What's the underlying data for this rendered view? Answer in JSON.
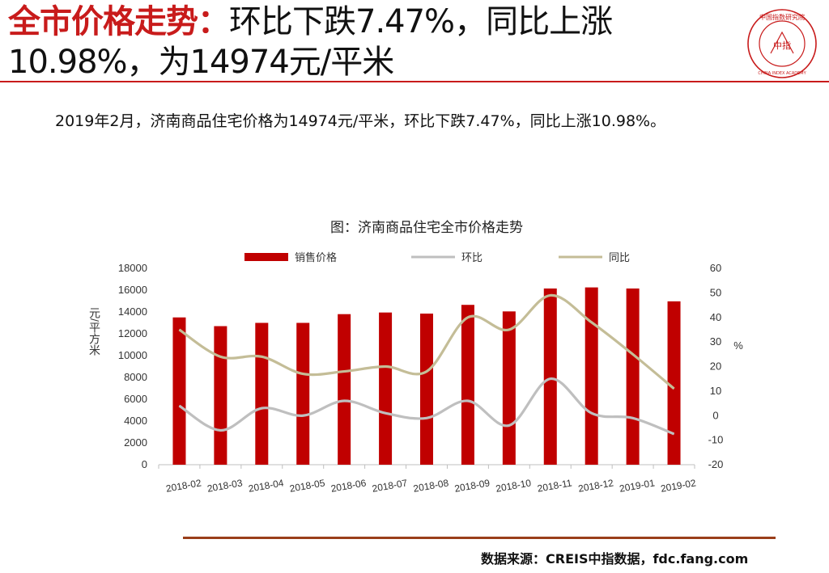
{
  "header": {
    "title_highlight": "全市价格走势：",
    "title_rest": "环比下跌7.47%，同比上涨10.98%，为14974元/平米"
  },
  "logo": {
    "outer_text": "中国指数研究院",
    "english_text": "CHINA INDEX ACADEMY",
    "inner_text": "中指",
    "color": "#c81b1b"
  },
  "summary": "2019年2月，济南商品住宅价格为14974元/平米，环比下跌7.47%，同比上涨10.98%。",
  "chart_data": {
    "type": "bar",
    "title": "图：济南商品住宅全市价格走势",
    "categories": [
      "2018-02",
      "2018-03",
      "2018-04",
      "2018-05",
      "2018-06",
      "2018-07",
      "2018-08",
      "2018-09",
      "2018-10",
      "2018-11",
      "2018-12",
      "2019-01",
      "2019-02"
    ],
    "series": [
      {
        "name": "销售价格",
        "kind": "bar",
        "axis": "left",
        "color": "#c00000",
        "values": [
          13500,
          12700,
          13000,
          13000,
          13800,
          13950,
          13850,
          14650,
          14050,
          16150,
          16250,
          16150,
          14974
        ]
      },
      {
        "name": "环比",
        "kind": "line",
        "axis": "right",
        "color": "#bfbfbf",
        "values": [
          4,
          -6,
          3,
          0,
          6,
          1,
          -1,
          6,
          -4,
          15,
          1,
          -1,
          -7.47
        ]
      },
      {
        "name": "同比",
        "kind": "line",
        "axis": "right",
        "color": "#c4bd97",
        "values": [
          35,
          24,
          24,
          17,
          18,
          20,
          18,
          40,
          35,
          49,
          38,
          25,
          10.98
        ]
      }
    ],
    "ylabel": "元/平方米",
    "y2label": "%",
    "ylim": [
      0,
      18000
    ],
    "yticks": [
      0,
      2000,
      4000,
      6000,
      8000,
      10000,
      12000,
      14000,
      16000,
      18000
    ],
    "y2lim": [
      -20,
      60
    ],
    "y2ticks": [
      -20,
      -10,
      0,
      10,
      20,
      30,
      40,
      50,
      60
    ],
    "legend_position": "top",
    "grid": false
  },
  "footer": {
    "source": "数据来源：CREIS中指数据，fdc.fang.com"
  }
}
